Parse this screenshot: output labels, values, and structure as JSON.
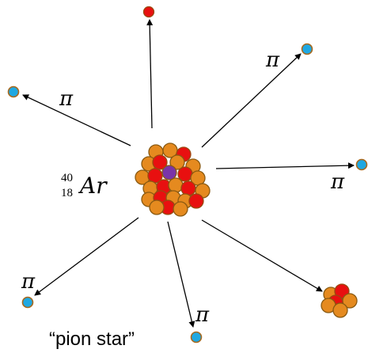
{
  "labels": [
    "π",
    "π",
    "π",
    "π",
    "π"
  ],
  "nucleus": {
    "mass_number": "40",
    "atomic_number": "18",
    "symbol": "Ar"
  },
  "caption": "“pion star”"
}
